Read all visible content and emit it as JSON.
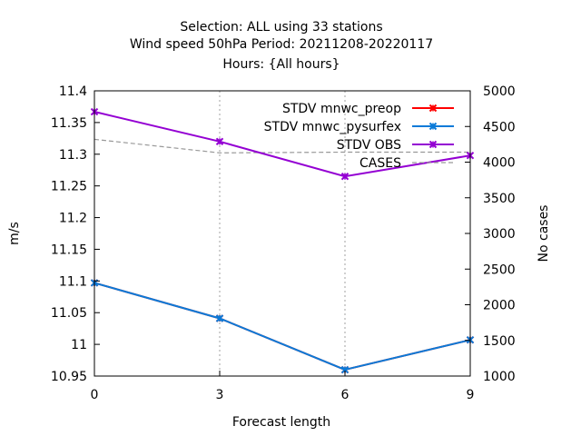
{
  "chart_data": {
    "type": "line",
    "title_lines": [
      "Selection: ALL using    33 stations",
      "Wind speed 50hPa   Period: 20211208-20220117",
      "Hours: {All hours}"
    ],
    "xlabel": "Forecast length",
    "ylabel": "m/s",
    "y2label": "No cases",
    "xlim": [
      0,
      9
    ],
    "ylim": [
      10.95,
      11.4
    ],
    "y2lim": [
      1000,
      5000
    ],
    "xticks": [
      "0",
      "3",
      "6",
      "9"
    ],
    "yticks": [
      "10.95",
      "11",
      "11.05",
      "11.1",
      "11.15",
      "11.2",
      "11.25",
      "11.3",
      "11.35",
      "11.4"
    ],
    "y2ticks": [
      "1000",
      "1500",
      "2000",
      "2500",
      "3000",
      "3500",
      "4000",
      "4500",
      "5000"
    ],
    "grid": true,
    "legend_position": "top-right",
    "x": [
      0,
      3,
      6,
      9
    ],
    "series": [
      {
        "name": "STDV mnwc_preop",
        "color": "#ff0000",
        "axis": "y1",
        "style": "line-x",
        "values": [
          11.097,
          11.041,
          10.96,
          11.007
        ]
      },
      {
        "name": "STDV mnwc_pysurfex",
        "color": "#0a7ad8",
        "axis": "y1",
        "style": "line-x",
        "values": [
          11.097,
          11.041,
          10.96,
          11.007
        ]
      },
      {
        "name": "STDV OBS",
        "color": "#9400d3",
        "axis": "y1",
        "style": "line-x",
        "values": [
          11.367,
          11.32,
          11.265,
          11.298
        ]
      },
      {
        "name": "CASES",
        "color": "#999999",
        "axis": "y2",
        "style": "dashed",
        "values": [
          4320,
          4130,
          4140,
          4140
        ]
      }
    ]
  }
}
